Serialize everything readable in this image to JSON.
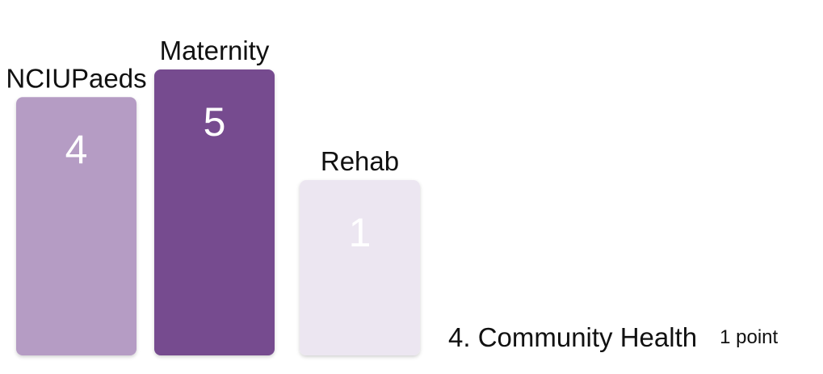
{
  "chart_data": {
    "type": "bar",
    "categories": [
      "NCIUPaeds",
      "Maternity",
      "Rehab"
    ],
    "values": [
      4,
      5,
      1
    ],
    "colors": [
      "#b59cc4",
      "#764b8f",
      "#ece6f1"
    ],
    "extra_entries": [
      {
        "rank_label": "4. Community Health",
        "points_label": "1 point"
      }
    ]
  }
}
